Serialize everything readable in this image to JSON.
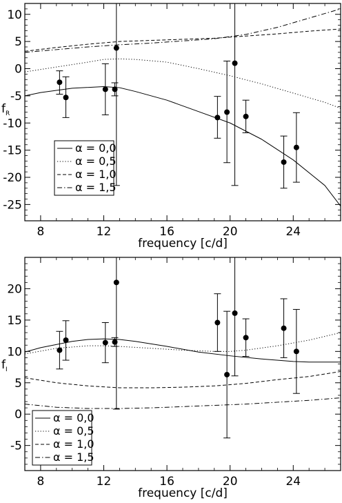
{
  "chart_data": [
    {
      "type": "line",
      "panel": "top",
      "xlabel": "frequency [c/d]",
      "ylabel": "f",
      "ylabel_sub": "R",
      "xlim": [
        7,
        27
      ],
      "ylim": [
        -28,
        12
      ],
      "xticks": [
        8,
        12,
        16,
        20,
        24
      ],
      "yticks": [
        10,
        5,
        0,
        -5,
        -10,
        -15,
        -20,
        -25
      ],
      "legend": {
        "position": "bottom-left",
        "entries": [
          {
            "label": "α = 0,0",
            "style": "solid"
          },
          {
            "label": "α = 0,5",
            "style": "dotted"
          },
          {
            "label": "α = 1,0",
            "style": "dashed"
          },
          {
            "label": "α = 1,5",
            "style": "dashdot"
          }
        ]
      },
      "points": [
        {
          "x": 9.2,
          "y": -2.5,
          "lo": -4.7,
          "hi": -0.4
        },
        {
          "x": 9.6,
          "y": -5.3,
          "lo": -9.0,
          "hi": -1.5
        },
        {
          "x": 12.1,
          "y": -3.8,
          "lo": -8.5,
          "hi": 0.9
        },
        {
          "x": 12.7,
          "y": -3.8,
          "lo": -5.0,
          "hi": -2.6
        },
        {
          "x": 12.8,
          "y": 3.8,
          "lo": -21.5,
          "hi": 12
        },
        {
          "x": 19.2,
          "y": -9.0,
          "lo": -12.8,
          "hi": -5.1
        },
        {
          "x": 19.8,
          "y": -8.0,
          "lo": -17.3,
          "hi": 1.4
        },
        {
          "x": 20.3,
          "y": 1.0,
          "lo": -21.5,
          "hi": 12
        },
        {
          "x": 21.0,
          "y": -8.8,
          "lo": -11.8,
          "hi": -5.8
        },
        {
          "x": 23.4,
          "y": -17.2,
          "lo": -22.0,
          "hi": -12.4
        },
        {
          "x": 24.2,
          "y": -14.5,
          "lo": -20.9,
          "hi": -8.1
        }
      ],
      "series": [
        {
          "style": "solid",
          "x": [
            7,
            8,
            10,
            12,
            13,
            14,
            16,
            18,
            20,
            22,
            24,
            26,
            27
          ],
          "y": [
            -5.0,
            -4.4,
            -3.6,
            -3.3,
            -3.5,
            -4.2,
            -5.8,
            -7.9,
            -10.0,
            -13.0,
            -16.8,
            -21.5,
            -25.3
          ]
        },
        {
          "style": "dotted",
          "x": [
            7,
            9,
            11,
            12,
            13,
            14,
            16,
            18,
            20,
            22,
            24,
            26,
            27
          ],
          "y": [
            -0.6,
            0.3,
            1.2,
            1.7,
            1.8,
            1.7,
            1.2,
            0.0,
            -1.3,
            -2.8,
            -4.5,
            -6.2,
            -7.3
          ]
        },
        {
          "style": "dashed",
          "x": [
            7,
            9,
            11,
            13,
            15,
            17,
            19,
            21,
            23,
            25,
            27
          ],
          "y": [
            3.2,
            3.9,
            4.5,
            5.0,
            5.2,
            5.4,
            5.6,
            6.0,
            6.4,
            6.9,
            7.3
          ]
        },
        {
          "style": "dashdot",
          "x": [
            7,
            9,
            11,
            13,
            15,
            17,
            19,
            21,
            23,
            25,
            27
          ],
          "y": [
            3.0,
            3.5,
            4.0,
            4.4,
            4.7,
            5.1,
            5.5,
            6.3,
            7.6,
            9.3,
            11.0
          ]
        }
      ]
    },
    {
      "type": "line",
      "panel": "bottom",
      "xlabel": "frequency [c/d]",
      "ylabel": "f",
      "ylabel_sub": "I",
      "xlim": [
        7,
        27
      ],
      "ylim": [
        -9,
        25
      ],
      "xticks": [
        8,
        12,
        16,
        20,
        24
      ],
      "yticks": [
        20,
        15,
        10,
        5,
        0,
        -5
      ],
      "legend": {
        "position": "bottom-left",
        "entries": [
          {
            "label": "α = 0,0",
            "style": "solid"
          },
          {
            "label": "α = 0,5",
            "style": "dotted"
          },
          {
            "label": "α = 1,0",
            "style": "dashed"
          },
          {
            "label": "α = 1,5",
            "style": "dashdot"
          }
        ]
      },
      "points": [
        {
          "x": 9.2,
          "y": 10.2,
          "lo": 7.2,
          "hi": 13.2
        },
        {
          "x": 9.6,
          "y": 11.8,
          "lo": 8.6,
          "hi": 14.9
        },
        {
          "x": 12.1,
          "y": 11.4,
          "lo": 8.2,
          "hi": 14.6
        },
        {
          "x": 12.7,
          "y": 11.5,
          "lo": 10.8,
          "hi": 12.2
        },
        {
          "x": 12.8,
          "y": 21.0,
          "lo": 0.8,
          "hi": 25
        },
        {
          "x": 19.2,
          "y": 14.6,
          "lo": 10.0,
          "hi": 19.2
        },
        {
          "x": 19.8,
          "y": 6.3,
          "lo": -3.8,
          "hi": 16.4
        },
        {
          "x": 20.3,
          "y": 16.1,
          "lo": 6.1,
          "hi": 25
        },
        {
          "x": 21.0,
          "y": 12.2,
          "lo": 9.2,
          "hi": 15.2
        },
        {
          "x": 23.4,
          "y": 13.7,
          "lo": 9.0,
          "hi": 18.4
        },
        {
          "x": 24.2,
          "y": 10.0,
          "lo": 3.3,
          "hi": 16.7
        }
      ],
      "series": [
        {
          "style": "solid",
          "x": [
            7,
            8,
            10,
            11,
            12,
            13,
            14,
            16,
            18,
            20,
            22,
            24,
            25,
            26,
            27
          ],
          "y": [
            9.9,
            10.6,
            11.6,
            11.9,
            12.0,
            11.9,
            11.6,
            10.8,
            9.9,
            9.3,
            8.8,
            8.4,
            8.3,
            8.3,
            8.3
          ]
        },
        {
          "style": "dotted",
          "x": [
            7,
            9,
            11,
            12,
            13,
            15,
            17,
            19,
            20,
            21,
            23,
            25,
            27
          ],
          "y": [
            9.6,
            10.5,
            10.9,
            10.9,
            10.8,
            10.5,
            10.2,
            10.0,
            10.0,
            10.2,
            10.9,
            11.8,
            13.0
          ]
        },
        {
          "style": "dashed",
          "x": [
            7,
            9,
            11,
            13,
            15,
            17,
            19,
            21,
            23,
            25,
            27
          ],
          "y": [
            5.8,
            5.0,
            4.5,
            4.2,
            4.2,
            4.3,
            4.5,
            4.9,
            5.5,
            6.0,
            6.8
          ]
        },
        {
          "style": "dashdot",
          "x": [
            7,
            9,
            11,
            13,
            15,
            17,
            19,
            21,
            23,
            25,
            27
          ],
          "y": [
            1.6,
            1.1,
            0.9,
            0.9,
            1.0,
            1.2,
            1.4,
            1.6,
            1.9,
            2.2,
            2.6
          ]
        }
      ]
    }
  ]
}
